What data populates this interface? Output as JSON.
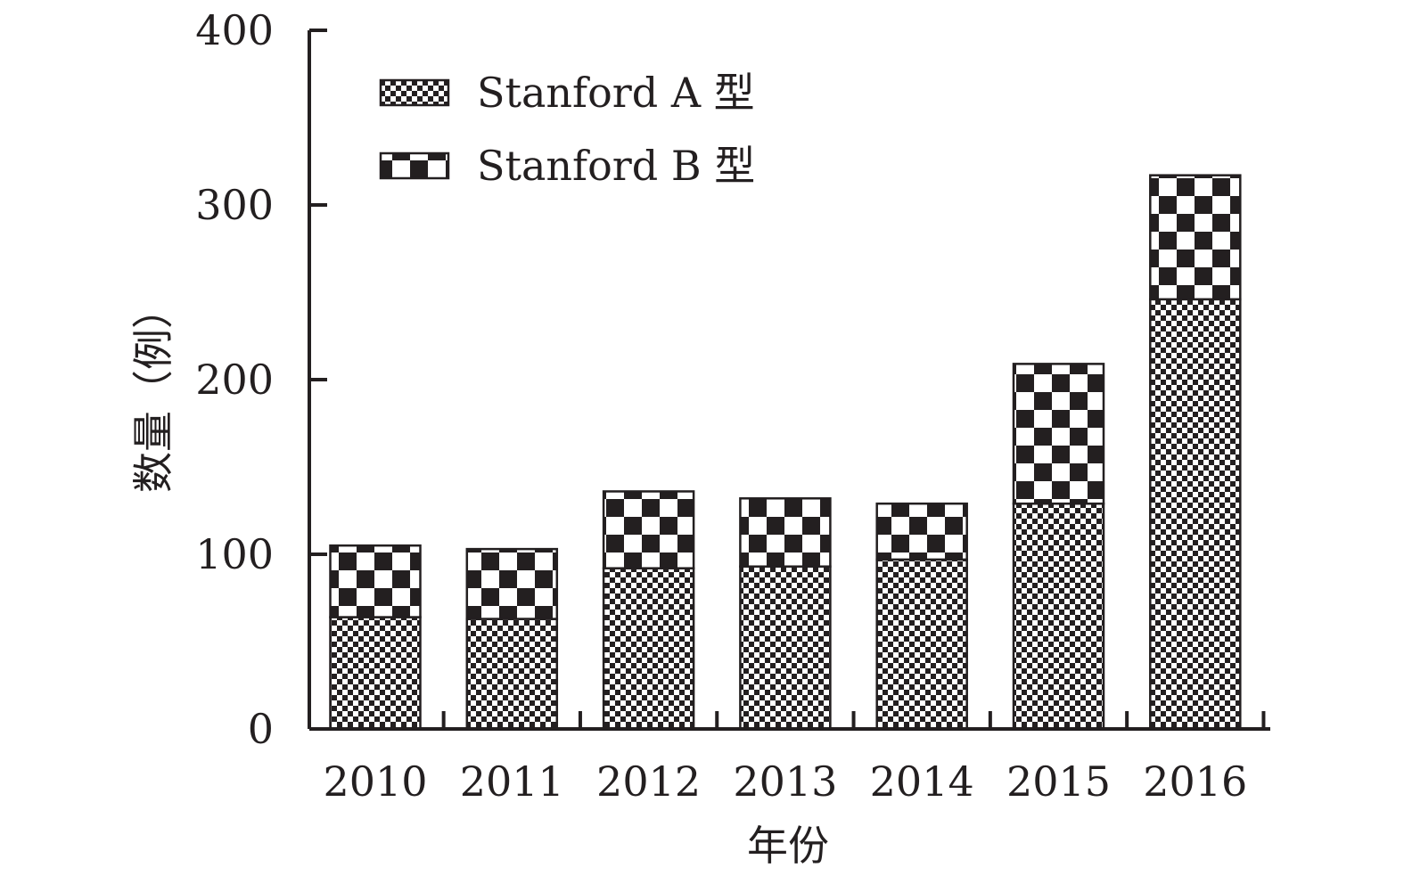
{
  "chart_data": {
    "type": "bar",
    "stacked": true,
    "categories": [
      "2010",
      "2011",
      "2012",
      "2013",
      "2014",
      "2015",
      "2016"
    ],
    "series": [
      {
        "name": "Stanford A 型",
        "values": [
          64,
          63,
          92,
          93,
          97,
          129,
          246
        ],
        "pattern": "fine-checker"
      },
      {
        "name": "Stanford B 型",
        "values": [
          41,
          40,
          44,
          39,
          32,
          80,
          71
        ],
        "pattern": "coarse-checker"
      }
    ],
    "xlabel": "年份",
    "ylabel": "数量（例）",
    "ylim": [
      0,
      400
    ],
    "yticks": [
      0,
      100,
      200,
      300,
      400
    ],
    "grid": false,
    "legend_position": "top-left",
    "colors": {
      "ink": "#231f20",
      "background": "#ffffff"
    }
  }
}
